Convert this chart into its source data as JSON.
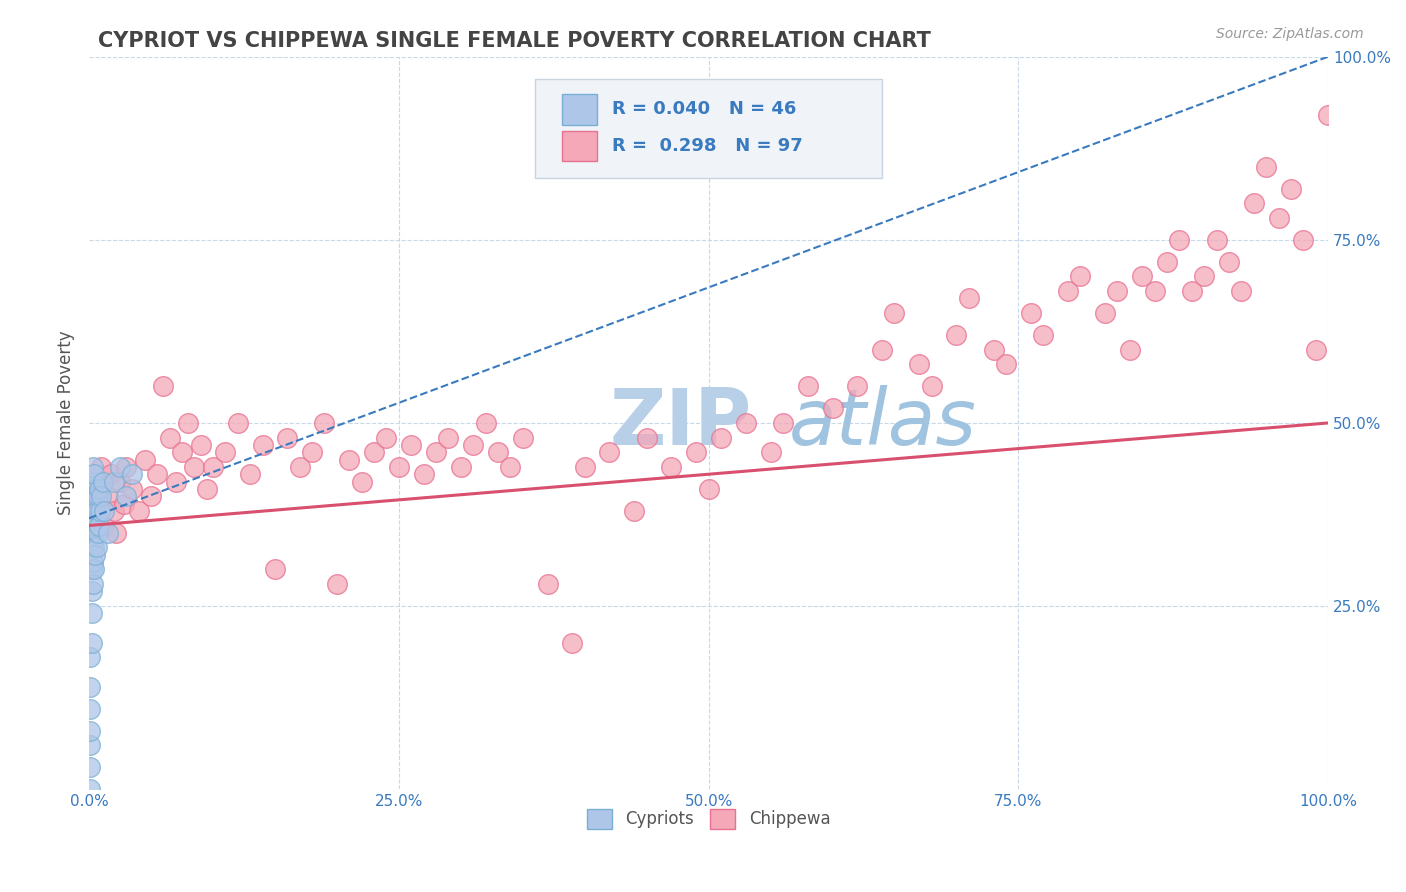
{
  "title": "CYPRIOT VS CHIPPEWA SINGLE FEMALE POVERTY CORRELATION CHART",
  "source_text": "Source: ZipAtlas.com",
  "ylabel": "Single Female Poverty",
  "x_tick_labels": [
    "0.0%",
    "25.0%",
    "50.0%",
    "75.0%",
    "100.0%"
  ],
  "x_tick_vals": [
    0.0,
    0.25,
    0.5,
    0.75,
    1.0
  ],
  "y_tick_labels": [
    "25.0%",
    "50.0%",
    "75.0%",
    "100.0%"
  ],
  "y_tick_vals": [
    0.25,
    0.5,
    0.75,
    1.0
  ],
  "cypriot_color": "#aec6e8",
  "chippewa_color": "#f4a8b8",
  "cypriot_edge": "#7aafd4",
  "chippewa_edge": "#e87090",
  "trend_cypriot_color": "#3a7abf",
  "trend_chippewa_color": "#d94f6e",
  "watermark_color": "#ccddef",
  "legend_text_color": "#3a7abf",
  "R_cypriot": 0.04,
  "N_cypriot": 46,
  "R_chippewa": 0.298,
  "N_chippewa": 97,
  "title_color": "#444444",
  "background_color": "#ffffff",
  "grid_color": "#c8d8e8",
  "cypriot_x": [
    0.001,
    0.001,
    0.001,
    0.001,
    0.001,
    0.001,
    0.001,
    0.002,
    0.002,
    0.002,
    0.002,
    0.002,
    0.002,
    0.002,
    0.002,
    0.002,
    0.003,
    0.003,
    0.003,
    0.003,
    0.003,
    0.003,
    0.003,
    0.004,
    0.004,
    0.004,
    0.004,
    0.004,
    0.005,
    0.005,
    0.005,
    0.006,
    0.006,
    0.007,
    0.007,
    0.008,
    0.008,
    0.009,
    0.01,
    0.011,
    0.012,
    0.015,
    0.02,
    0.025,
    0.03,
    0.035
  ],
  "cypriot_y": [
    0.0,
    0.03,
    0.06,
    0.08,
    0.11,
    0.14,
    0.18,
    0.2,
    0.24,
    0.27,
    0.3,
    0.33,
    0.35,
    0.38,
    0.4,
    0.42,
    0.28,
    0.31,
    0.34,
    0.36,
    0.38,
    0.41,
    0.44,
    0.3,
    0.33,
    0.36,
    0.39,
    0.43,
    0.32,
    0.36,
    0.4,
    0.33,
    0.38,
    0.35,
    0.4,
    0.36,
    0.41,
    0.38,
    0.4,
    0.42,
    0.38,
    0.35,
    0.42,
    0.44,
    0.4,
    0.43
  ],
  "chippewa_x": [
    0.005,
    0.008,
    0.01,
    0.012,
    0.015,
    0.018,
    0.02,
    0.022,
    0.025,
    0.028,
    0.03,
    0.035,
    0.04,
    0.045,
    0.05,
    0.055,
    0.06,
    0.065,
    0.07,
    0.075,
    0.08,
    0.085,
    0.09,
    0.095,
    0.1,
    0.11,
    0.12,
    0.13,
    0.14,
    0.15,
    0.16,
    0.17,
    0.18,
    0.19,
    0.2,
    0.21,
    0.22,
    0.23,
    0.24,
    0.25,
    0.26,
    0.27,
    0.28,
    0.29,
    0.3,
    0.31,
    0.32,
    0.33,
    0.34,
    0.35,
    0.37,
    0.39,
    0.4,
    0.42,
    0.44,
    0.45,
    0.47,
    0.49,
    0.5,
    0.51,
    0.53,
    0.55,
    0.56,
    0.58,
    0.6,
    0.62,
    0.64,
    0.65,
    0.67,
    0.68,
    0.7,
    0.71,
    0.73,
    0.74,
    0.76,
    0.77,
    0.79,
    0.8,
    0.82,
    0.83,
    0.84,
    0.85,
    0.86,
    0.87,
    0.88,
    0.89,
    0.9,
    0.91,
    0.92,
    0.93,
    0.94,
    0.95,
    0.96,
    0.97,
    0.98,
    0.99,
    1.0
  ],
  "chippewa_y": [
    0.38,
    0.41,
    0.44,
    0.36,
    0.4,
    0.43,
    0.38,
    0.35,
    0.42,
    0.39,
    0.44,
    0.41,
    0.38,
    0.45,
    0.4,
    0.43,
    0.55,
    0.48,
    0.42,
    0.46,
    0.5,
    0.44,
    0.47,
    0.41,
    0.44,
    0.46,
    0.5,
    0.43,
    0.47,
    0.3,
    0.48,
    0.44,
    0.46,
    0.5,
    0.28,
    0.45,
    0.42,
    0.46,
    0.48,
    0.44,
    0.47,
    0.43,
    0.46,
    0.48,
    0.44,
    0.47,
    0.5,
    0.46,
    0.44,
    0.48,
    0.28,
    0.2,
    0.44,
    0.46,
    0.38,
    0.48,
    0.44,
    0.46,
    0.41,
    0.48,
    0.5,
    0.46,
    0.5,
    0.55,
    0.52,
    0.55,
    0.6,
    0.65,
    0.58,
    0.55,
    0.62,
    0.67,
    0.6,
    0.58,
    0.65,
    0.62,
    0.68,
    0.7,
    0.65,
    0.68,
    0.6,
    0.7,
    0.68,
    0.72,
    0.75,
    0.68,
    0.7,
    0.75,
    0.72,
    0.68,
    0.8,
    0.85,
    0.78,
    0.82,
    0.75,
    0.6,
    0.92
  ]
}
